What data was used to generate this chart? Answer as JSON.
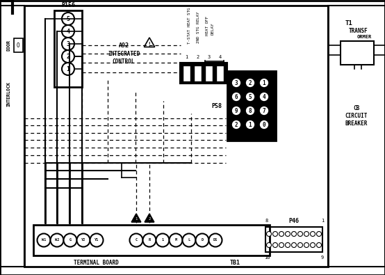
{
  "bg_color": "#ffffff",
  "line_color": "#000000",
  "fig_width": 5.54,
  "fig_height": 3.95,
  "dpi": 100,
  "p156_label": "P156",
  "p156_pins": [
    "5",
    "4",
    "3",
    "2",
    "1"
  ],
  "a92_lines": [
    "A92",
    "INTEGRATED",
    "CONTROL"
  ],
  "connector_labels": [
    "T-STAT HEAT STG",
    "2ND STG RELAY",
    "HEAT OFF",
    "DELAY"
  ],
  "pin_nums": [
    "1",
    "2",
    "3",
    "4"
  ],
  "p58_label": "P58",
  "p58_rows": [
    [
      "3",
      "2",
      "1"
    ],
    [
      "6",
      "5",
      "4"
    ],
    [
      "9",
      "8",
      "7"
    ],
    [
      "2",
      "1",
      "0"
    ]
  ],
  "tb1_labels": [
    "W1",
    "W2",
    "G",
    "Y2",
    "Y1",
    "C",
    "R",
    "1",
    "M",
    "L",
    "D",
    "DS"
  ],
  "tb_label1": "TERMINAL BOARD",
  "tb_label2": "TB1",
  "p46_label": "P46",
  "t1_lines": [
    "T1",
    "TRANSF"
  ],
  "cb_lines": [
    "CB",
    "CIRCUIT",
    "BREAKER"
  ],
  "interlock_lines": [
    "DOOR",
    "INTERLOCK"
  ]
}
